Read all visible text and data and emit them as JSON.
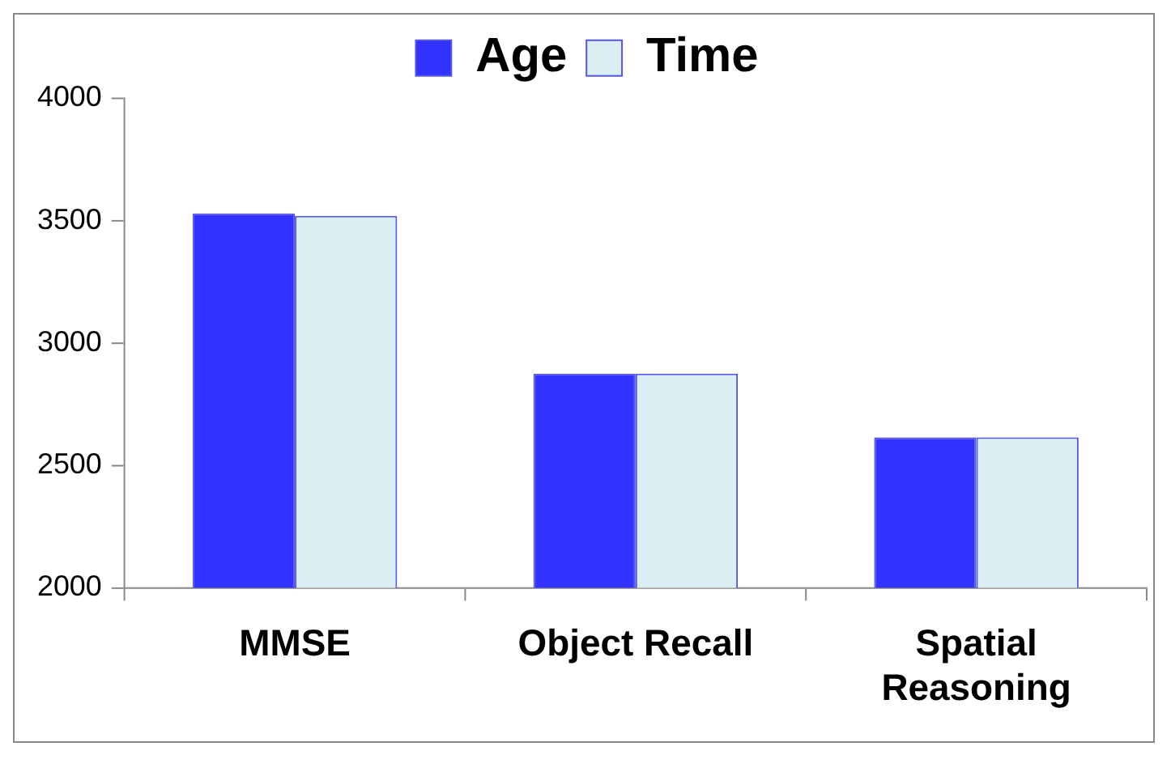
{
  "chart_data": {
    "type": "bar",
    "categories": [
      "MMSE",
      "Object Recall",
      "Spatial Reasoning"
    ],
    "series": [
      {
        "name": "Age",
        "color": "#3333ff",
        "values": [
          3530,
          2875,
          2615
        ]
      },
      {
        "name": "Time",
        "color": "#dbeef4",
        "values": [
          3520,
          2875,
          2615
        ]
      }
    ],
    "ylim": [
      2000,
      4000
    ],
    "yticks": [
      2000,
      2500,
      3000,
      3500,
      4000
    ],
    "grid": false,
    "legend": "top"
  }
}
